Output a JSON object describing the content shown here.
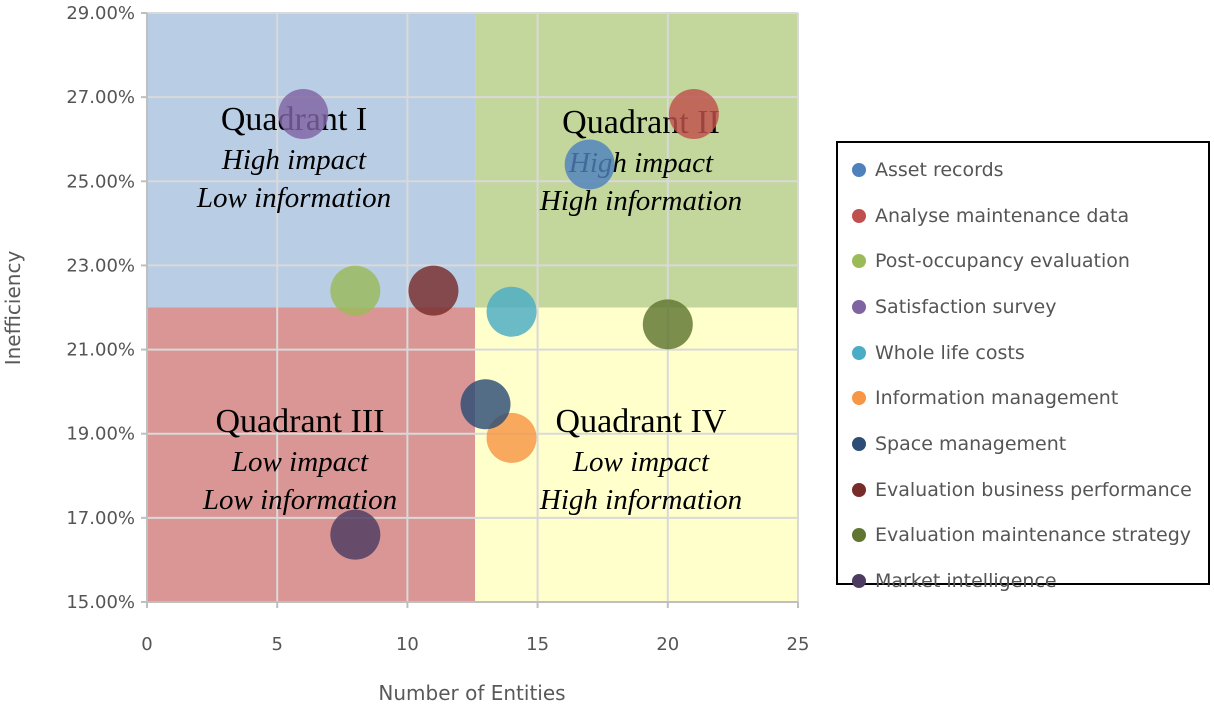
{
  "chart_data": {
    "type": "scatter",
    "title": "",
    "xlabel": "Number of Entities",
    "ylabel": "Inefficiency",
    "xlim": [
      0,
      25
    ],
    "ylim": [
      15,
      29
    ],
    "x_ticks": [
      "0",
      "5",
      "10",
      "15",
      "20",
      "25"
    ],
    "y_ticks": [
      "15.00%",
      "17.00%",
      "19.00%",
      "21.00%",
      "23.00%",
      "25.00%",
      "27.00%",
      "29.00%"
    ],
    "grid": true,
    "legend_position": "right",
    "quadrant_split": {
      "x": 12.6,
      "y": 22
    },
    "quadrants": [
      {
        "name": "Quadrant I",
        "line1": "High impact",
        "line2": "Low information",
        "color": "#b9cde5"
      },
      {
        "name": "Quadrant II",
        "line1": "High impact",
        "line2": "High information",
        "color": "#c3d69b"
      },
      {
        "name": "Quadrant III",
        "line1": "Low impact",
        "line2": "Low information",
        "color": "#d99694"
      },
      {
        "name": "Quadrant IV",
        "line1": "Low impact",
        "line2": "High information",
        "color": "#ffffcc"
      }
    ],
    "series": [
      {
        "name": "Asset records",
        "x": 17,
        "y": 25.4,
        "color": "#4f81bd"
      },
      {
        "name": "Analyse maintenance data",
        "x": 21,
        "y": 26.6,
        "color": "#c0504d"
      },
      {
        "name": "Post-occupancy evaluation",
        "x": 8,
        "y": 22.4,
        "color": "#9bbb59"
      },
      {
        "name": "Satisfaction survey",
        "x": 6,
        "y": 26.6,
        "color": "#8064a2"
      },
      {
        "name": "Whole life costs",
        "x": 14,
        "y": 21.9,
        "color": "#4bacc6"
      },
      {
        "name": "Information management",
        "x": 14,
        "y": 18.9,
        "color": "#f79646"
      },
      {
        "name": "Space management",
        "x": 13,
        "y": 19.7,
        "color": "#2c4d75"
      },
      {
        "name": "Evaluation business performance",
        "x": 11,
        "y": 22.4,
        "color": "#772c2a"
      },
      {
        "name": "Evaluation maintenance strategy",
        "x": 20,
        "y": 21.6,
        "color": "#5f7530"
      },
      {
        "name": "Market intelligence",
        "x": 8,
        "y": 16.6,
        "color": "#4d3b62"
      }
    ]
  }
}
